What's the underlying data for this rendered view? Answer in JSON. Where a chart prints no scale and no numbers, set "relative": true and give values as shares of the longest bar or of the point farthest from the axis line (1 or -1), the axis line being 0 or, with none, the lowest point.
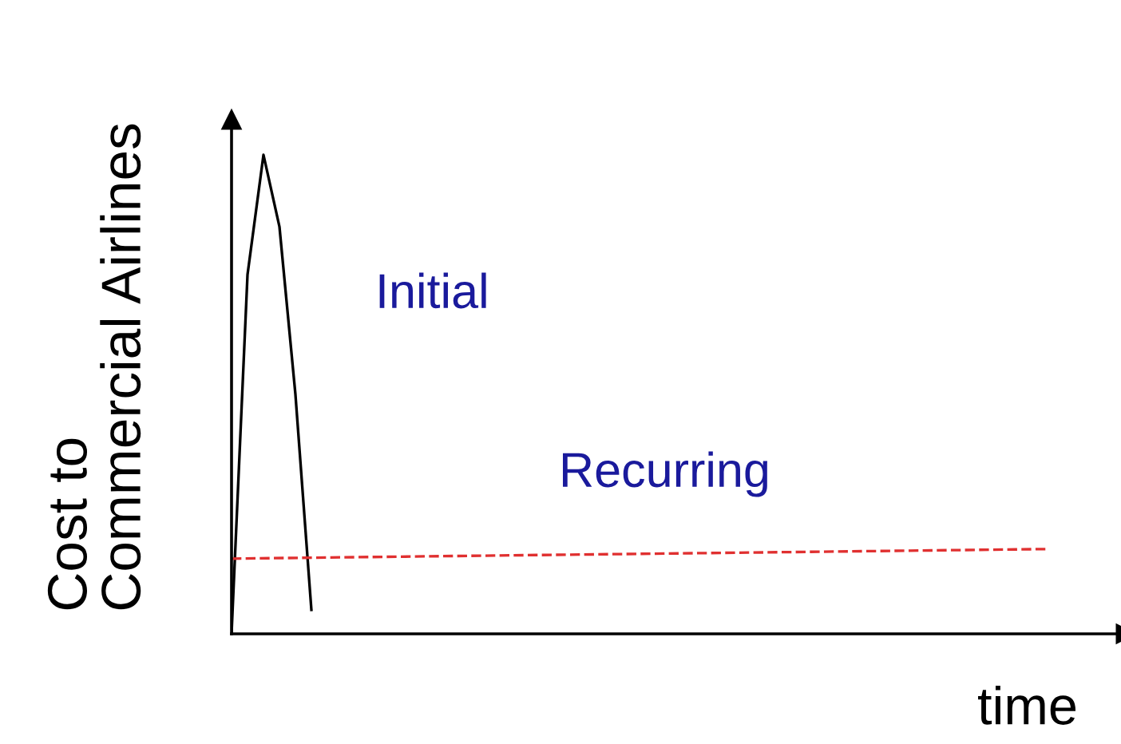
{
  "chart_data": {
    "type": "line",
    "relative": true,
    "xlabel": "time",
    "ylabel": "Cost to\nCommercial Airlines",
    "categories": [
      null,
      null,
      null,
      null,
      null,
      null,
      null,
      null,
      null,
      null,
      null,
      null,
      null,
      null,
      null,
      null,
      null,
      null,
      null,
      null,
      null,
      null,
      null,
      null,
      null,
      null,
      null,
      null,
      null,
      null,
      null,
      null,
      null,
      null,
      null,
      null,
      null,
      null,
      null,
      null,
      null,
      null,
      null,
      null,
      null,
      null,
      null,
      null,
      null,
      null,
      null,
      null,
      null,
      null,
      null,
      null
    ],
    "series": [
      {
        "color": "#000000",
        "line_style": "solid",
        "values": [
          0,
          0.75,
          1.0,
          0.85,
          0.5,
          0.05,
          null,
          null,
          null,
          null,
          null,
          null,
          null,
          null,
          null,
          null,
          null,
          null,
          null,
          null,
          null,
          null,
          null,
          null,
          null,
          null,
          null,
          null,
          null,
          null,
          null,
          null,
          null,
          null,
          null,
          null,
          null,
          null,
          null,
          null,
          null,
          null,
          null,
          null,
          null,
          null,
          null,
          null,
          null,
          null,
          null,
          null,
          null,
          null,
          null,
          null
        ]
      },
      {
        "color": "#e03030",
        "line_style": "dashed",
        "values": [
          0.157,
          null,
          null,
          null,
          null,
          null,
          null,
          null,
          null,
          null,
          null,
          null,
          null,
          null,
          null,
          null,
          null,
          null,
          null,
          null,
          null,
          null,
          null,
          null,
          null,
          null,
          null,
          null,
          null,
          null,
          null,
          null,
          null,
          null,
          null,
          null,
          null,
          null,
          null,
          null,
          null,
          null,
          null,
          null,
          null,
          null,
          null,
          null,
          null,
          null,
          null,
          0.177,
          null,
          null,
          null,
          null
        ]
      }
    ],
    "annotations": [
      "Initial",
      "Recurring"
    ],
    "legend": false,
    "grid": false,
    "marker": "none"
  }
}
